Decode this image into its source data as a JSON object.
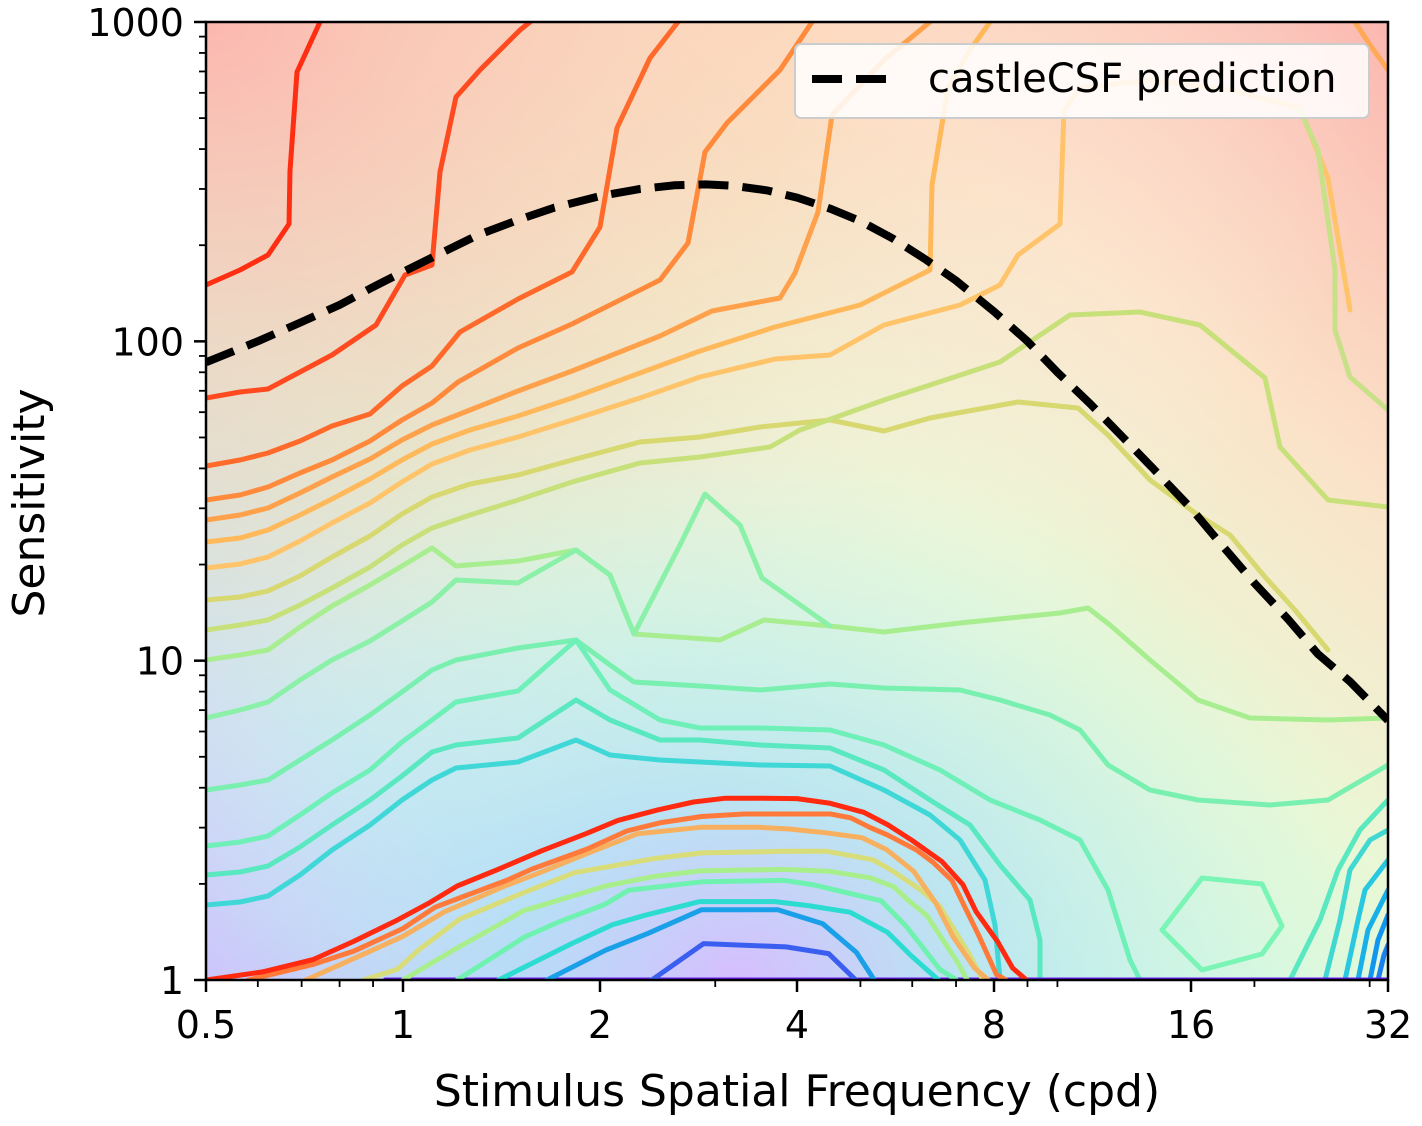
{
  "chart_data": {
    "type": "line",
    "title": "",
    "xlabel": "Stimulus Spatial Frequency (cpd)",
    "ylabel": "Sensitivity",
    "xscale": "log2",
    "yscale": "log10",
    "xlim": [
      0.5,
      32
    ],
    "ylim": [
      1,
      1000
    ],
    "xticks": [
      0.5,
      1,
      2,
      4,
      8,
      16,
      32
    ],
    "xtick_labels": [
      "0.5",
      "1",
      "2",
      "4",
      "8",
      "16",
      "32"
    ],
    "yticks": [
      1,
      10,
      100,
      1000
    ],
    "ytick_labels": [
      "1",
      "10",
      "100",
      "1000"
    ],
    "grid": false,
    "legend": {
      "position": "top-right",
      "entries": [
        "castleCSF prediction"
      ]
    },
    "colormap": [
      "#6a1ff5",
      "#3a5ff0",
      "#1aa0e8",
      "#2cdcd0",
      "#6ff2b0",
      "#a8ef8c",
      "#d8dd7a",
      "#f7b060",
      "#ff7a3a",
      "#ff2a10"
    ],
    "contour_levels": [
      {
        "x": [
          0.94,
          1.28,
          1.92,
          2.86,
          3.88,
          4.46,
          4.82,
          5.63,
          6.26,
          7.04,
          7.84,
          8.35,
          9.17,
          10.21,
          11.24,
          11.66,
          13.91,
          16.21,
          19.1,
          21.29,
          24.41,
          28.7,
          32.0
        ],
        "y": [
          1.0,
          1.0,
          1.0,
          1.0,
          1.0,
          1.0,
          1.0,
          1.0,
          1.0,
          1.0,
          1.0,
          1.0,
          1.0,
          1.0,
          1.0,
          1.0,
          1.0,
          1.0,
          1.0,
          1.0,
          1.0,
          1.0,
          1.0
        ]
      },
      {
        "x": [
          2.4,
          2.88,
          3.85,
          4.47,
          4.92
        ],
        "y": [
          1.0,
          1.3,
          1.27,
          1.21,
          1.0
        ]
      },
      {
        "x": [
          1.66,
          2.04,
          2.37,
          2.86,
          3.74,
          4.38,
          4.93,
          5.25
        ],
        "y": [
          1.0,
          1.24,
          1.4,
          1.66,
          1.66,
          1.5,
          1.22,
          1.0
        ]
      },
      {
        "x": [
          1.4,
          1.81,
          2.09,
          2.33,
          2.84,
          3.7,
          4.16,
          4.82,
          5.5,
          5.98,
          6.58
        ],
        "y": [
          1.0,
          1.3,
          1.49,
          1.59,
          1.76,
          1.76,
          1.71,
          1.63,
          1.41,
          1.19,
          1.0
        ]
      },
      {
        "x": [
          1.21,
          1.53,
          1.73,
          2.04,
          2.21,
          2.86,
          3.82,
          4.22,
          5.38,
          5.88,
          6.61,
          7.01
        ],
        "y": [
          1.0,
          1.36,
          1.52,
          1.73,
          1.91,
          2.03,
          2.05,
          1.99,
          1.77,
          1.47,
          1.08,
          1.0
        ]
      },
      {
        "x": [
          1.0,
          1.21,
          1.53,
          2.04,
          2.42,
          2.86,
          3.82,
          4.48,
          5.18,
          5.62,
          5.91,
          6.32,
          7.01,
          7.28
        ],
        "y": [
          1.0,
          1.26,
          1.65,
          1.97,
          2.11,
          2.2,
          2.22,
          2.19,
          2.09,
          1.96,
          1.78,
          1.59,
          1.15,
          1.0
        ]
      },
      {
        "x": [
          0.87,
          0.98,
          1.06,
          1.22,
          1.53,
          1.83,
          2.42,
          2.86,
          3.82,
          4.44,
          5.22,
          5.55,
          6.17,
          6.61,
          7.32,
          7.69
        ],
        "y": [
          1.0,
          1.08,
          1.25,
          1.55,
          1.88,
          2.17,
          2.4,
          2.5,
          2.53,
          2.53,
          2.38,
          2.22,
          1.92,
          1.7,
          1.21,
          1.0
        ]
      },
      {
        "x": [
          0.71,
          0.89,
          1.0,
          1.16,
          1.44,
          1.61,
          1.91,
          2.28,
          2.86,
          3.48,
          3.89,
          4.43,
          5.03,
          5.48,
          6.03,
          6.52,
          6.92,
          7.47,
          7.84
        ],
        "y": [
          1.0,
          1.23,
          1.37,
          1.64,
          1.98,
          2.16,
          2.49,
          2.87,
          3.01,
          3.01,
          2.97,
          2.89,
          2.79,
          2.56,
          2.19,
          1.74,
          1.37,
          1.09,
          1.0
        ]
      },
      {
        "x": [
          0.58,
          0.73,
          0.84,
          1.0,
          1.12,
          1.25,
          1.44,
          1.57,
          1.91,
          2.2,
          2.48,
          2.86,
          3.32,
          3.83,
          4.5,
          4.83,
          5.16,
          5.51,
          6.1,
          6.45,
          6.9,
          7.2,
          7.58,
          8.07,
          8.35
        ],
        "y": [
          1.0,
          1.12,
          1.23,
          1.45,
          1.69,
          1.84,
          2.05,
          2.22,
          2.57,
          2.93,
          3.11,
          3.25,
          3.31,
          3.31,
          3.31,
          3.22,
          3.01,
          2.84,
          2.55,
          2.34,
          2.05,
          1.71,
          1.38,
          1.04,
          1.0
        ]
      },
      {
        "x": [
          0.5,
          0.61,
          0.73,
          0.84,
          0.98,
          1.1,
          1.21,
          1.39,
          1.63,
          1.91,
          2.13,
          2.45,
          2.78,
          3.11,
          3.54,
          4.0,
          4.48,
          5.06,
          5.51,
          5.99,
          6.66,
          7.17,
          7.51,
          8.1,
          8.54,
          8.97
        ],
        "y": [
          1.0,
          1.06,
          1.16,
          1.32,
          1.54,
          1.75,
          1.97,
          2.21,
          2.54,
          2.88,
          3.16,
          3.41,
          3.61,
          3.71,
          3.71,
          3.7,
          3.58,
          3.35,
          3.06,
          2.74,
          2.35,
          1.99,
          1.64,
          1.32,
          1.09,
          1.0
        ]
      }
    ],
    "series": [
      {
        "name": "castleCSF prediction",
        "style": "dashed",
        "color": "#000000",
        "x": [
          0.5,
          0.6,
          0.7,
          0.8,
          0.9,
          1.0,
          1.15,
          1.3,
          1.5,
          1.7,
          2.0,
          2.3,
          2.6,
          2.9,
          3.2,
          3.6,
          4.0,
          4.5,
          5.0,
          5.6,
          6.3,
          7.0,
          8.0,
          9.0,
          10.0,
          11.2,
          12.6,
          14.0,
          16.0,
          18.0,
          20.0,
          22.5,
          25.0,
          28.0,
          32.0
        ],
        "y": [
          86,
          100,
          115,
          130,
          148,
          165,
          190,
          215,
          240,
          262,
          285,
          300,
          308,
          310,
          307,
          297,
          282,
          260,
          238,
          210,
          180,
          155,
          124,
          100,
          80,
          64,
          50,
          40,
          30,
          22.5,
          17.5,
          13.5,
          10.5,
          8.6,
          6.5
        ]
      }
    ]
  }
}
